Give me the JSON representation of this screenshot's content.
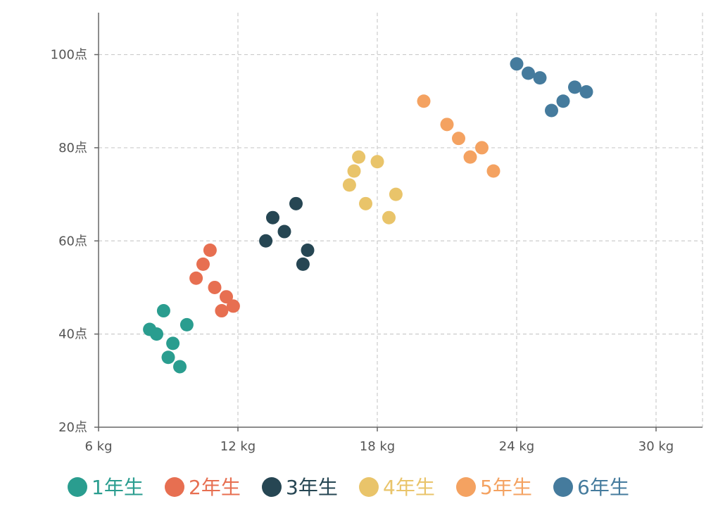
{
  "chart_data": {
    "type": "scatter",
    "x_axis": {
      "min": 6,
      "max": 32,
      "ticks": [
        6,
        12,
        18,
        24,
        30
      ],
      "tick_suffix": " kg"
    },
    "y_axis": {
      "min": 20,
      "max": 109,
      "ticks": [
        20,
        40,
        60,
        80,
        100
      ],
      "tick_suffix": "点"
    },
    "grid": true,
    "legend_position": "bottom",
    "series": [
      {
        "name": "1年生",
        "color": "#2a9d8f",
        "points": [
          [
            8.2,
            41
          ],
          [
            8.5,
            40
          ],
          [
            8.8,
            45
          ],
          [
            9.0,
            35
          ],
          [
            9.2,
            38
          ],
          [
            9.5,
            33
          ],
          [
            9.8,
            42
          ]
        ]
      },
      {
        "name": "2年生",
        "color": "#e76f51",
        "points": [
          [
            10.2,
            52
          ],
          [
            10.5,
            55
          ],
          [
            10.8,
            58
          ],
          [
            11.0,
            50
          ],
          [
            11.3,
            45
          ],
          [
            11.5,
            48
          ],
          [
            11.8,
            46
          ]
        ]
      },
      {
        "name": "3年生",
        "color": "#264653",
        "points": [
          [
            13.2,
            60
          ],
          [
            13.5,
            65
          ],
          [
            14.0,
            62
          ],
          [
            14.5,
            68
          ],
          [
            14.8,
            55
          ],
          [
            15.0,
            58
          ]
        ]
      },
      {
        "name": "4年生",
        "color": "#e9c46a",
        "points": [
          [
            16.8,
            72
          ],
          [
            17.0,
            75
          ],
          [
            17.2,
            78
          ],
          [
            17.5,
            68
          ],
          [
            18.0,
            77
          ],
          [
            18.5,
            65
          ],
          [
            18.8,
            70
          ]
        ]
      },
      {
        "name": "5年生",
        "color": "#f4a261",
        "points": [
          [
            20.0,
            90
          ],
          [
            21.0,
            85
          ],
          [
            21.5,
            82
          ],
          [
            22.0,
            78
          ],
          [
            22.5,
            80
          ],
          [
            23.0,
            75
          ]
        ]
      },
      {
        "name": "6年生",
        "color": "#457b9d",
        "points": [
          [
            24.0,
            98
          ],
          [
            24.5,
            96
          ],
          [
            25.0,
            95
          ],
          [
            25.5,
            88
          ],
          [
            26.0,
            90
          ],
          [
            26.5,
            93
          ],
          [
            27.0,
            92
          ]
        ]
      }
    ]
  }
}
